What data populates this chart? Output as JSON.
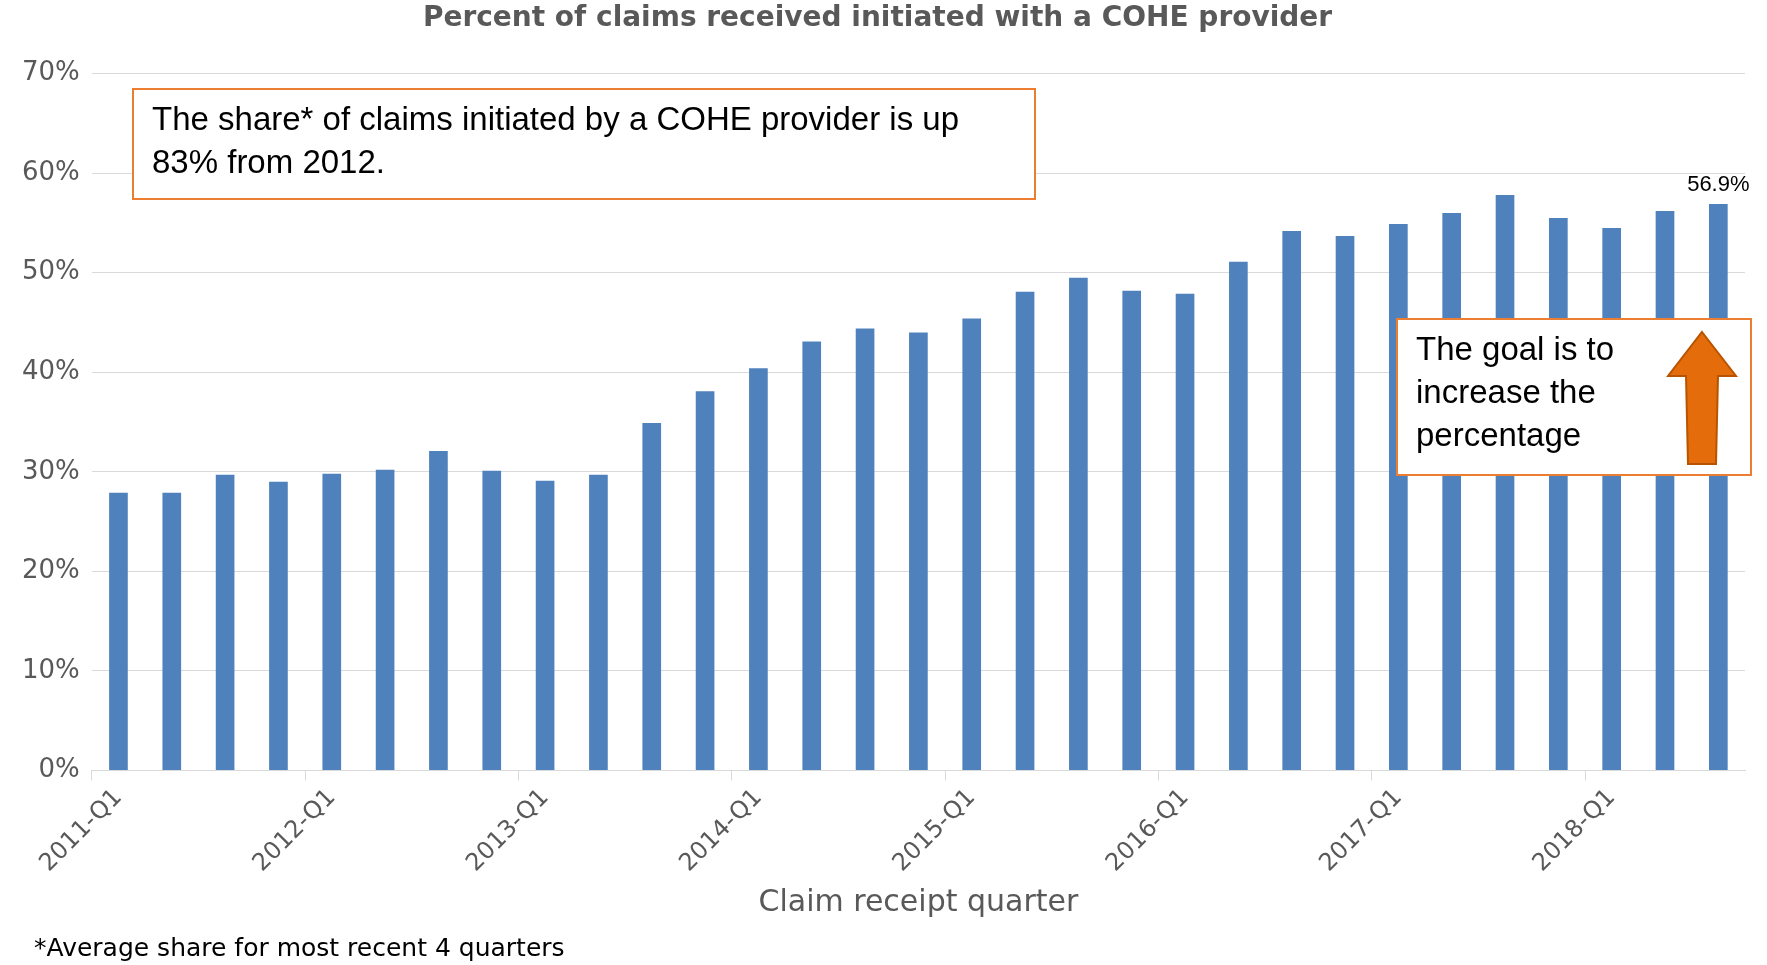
{
  "chart_data": {
    "type": "bar",
    "title": "Percent of claims received initiated with a COHE provider",
    "xlabel": "Claim receipt quarter",
    "categories": [
      "2011-Q1",
      null,
      null,
      null,
      "2012-Q1",
      null,
      null,
      null,
      "2013-Q1",
      null,
      null,
      null,
      "2014-Q1",
      null,
      null,
      null,
      "2015-Q1",
      null,
      null,
      null,
      "2016-Q1",
      null,
      null,
      null,
      "2017-Q1",
      null,
      null,
      null,
      "2018-Q1",
      null,
      null
    ],
    "series": [
      {
        "color": "#4f81bd",
        "values": [
          27.9,
          27.9,
          29.7,
          29.0,
          29.8,
          30.2,
          32.1,
          30.1,
          29.1,
          29.7,
          34.9,
          38.1,
          40.4,
          43.1,
          44.4,
          44.0,
          45.4,
          48.1,
          49.5,
          48.2,
          47.9,
          51.1,
          54.2,
          53.7,
          54.9,
          56.0,
          57.8,
          55.5,
          54.5,
          56.2,
          56.9
        ],
        "value_labels": [
          null,
          null,
          null,
          null,
          null,
          null,
          null,
          null,
          null,
          null,
          null,
          null,
          null,
          null,
          null,
          null,
          null,
          null,
          null,
          null,
          null,
          null,
          null,
          null,
          null,
          null,
          null,
          null,
          null,
          null,
          "56.9%"
        ]
      }
    ],
    "ylim": [
      0,
      70
    ],
    "yticks": [
      {
        "value": 0,
        "label": "0%"
      },
      {
        "value": 10,
        "label": "10%"
      },
      {
        "value": 20,
        "label": "20%"
      },
      {
        "value": 30,
        "label": "30%"
      },
      {
        "value": 40,
        "label": "40%"
      },
      {
        "value": 50,
        "label": "50%"
      },
      {
        "value": 60,
        "label": "60%"
      },
      {
        "value": 70,
        "label": "70%"
      }
    ],
    "grid": "y",
    "legend": false,
    "annotations": [
      "The share* of claims initiated by a COHE provider is up 83% from 2012.",
      "The goal is to increase the percentage",
      "*Average share for most recent 4 quarters"
    ]
  }
}
